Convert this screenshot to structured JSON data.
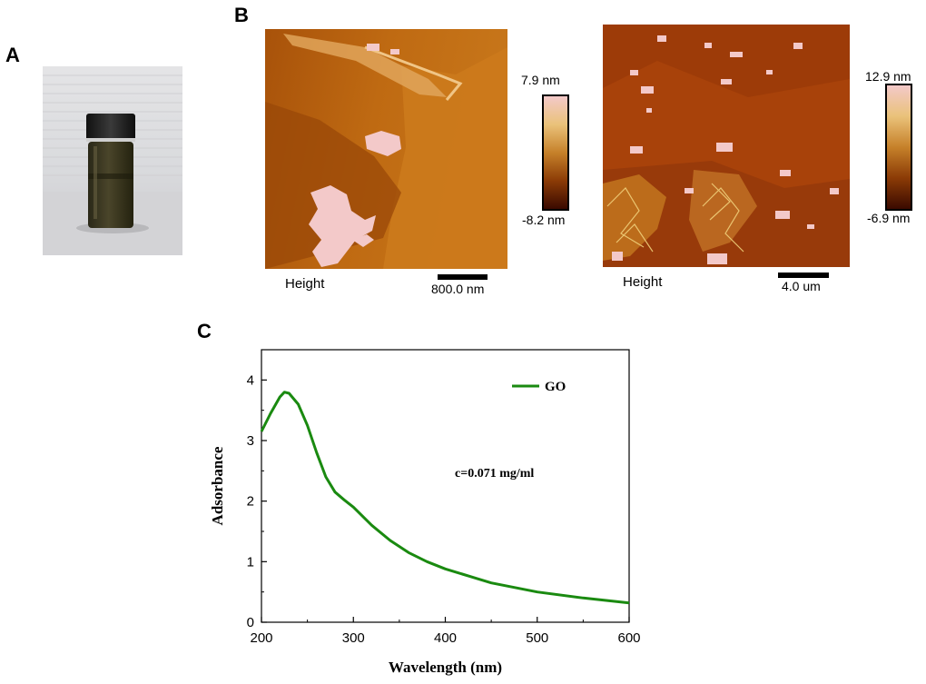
{
  "panels": {
    "a": {
      "letter": "A"
    },
    "b": {
      "letter": "B",
      "images": [
        {
          "label": "Height",
          "scale_bar": "800.0 nm",
          "cbar_max": "7.9 nm",
          "cbar_min": "-8.2 nm"
        },
        {
          "label": "Height",
          "scale_bar": "4.0 um",
          "cbar_max": "12.9 nm",
          "cbar_min": "-6.9 nm"
        }
      ]
    },
    "c": {
      "letter": "C"
    }
  },
  "colors": {
    "afm_dark": "#5a1a00",
    "afm_mid": "#b35a0a",
    "afm_light": "#f2b96a",
    "afm_pink": "#f3c9c9",
    "line_green": "#1a8a10"
  },
  "chart_data": {
    "type": "line",
    "title": "",
    "xlabel": "Wavelength (nm)",
    "ylabel": "Adsorbance",
    "xlim": [
      200,
      600
    ],
    "ylim": [
      0,
      4.5
    ],
    "xticks": [
      "200",
      "300",
      "400",
      "500",
      "600"
    ],
    "yticks": [
      "0",
      "1",
      "2",
      "3",
      "4"
    ],
    "annotation": "c=0.071 mg/ml",
    "legend": {
      "placement": "top-right",
      "entries": [
        "GO"
      ]
    },
    "grid": false,
    "series": [
      {
        "name": "GO",
        "color": "#1a8a10",
        "x": [
          200,
          210,
          220,
          225,
          230,
          240,
          250,
          260,
          270,
          280,
          290,
          300,
          320,
          340,
          360,
          380,
          400,
          450,
          500,
          550,
          600
        ],
        "y": [
          3.15,
          3.45,
          3.72,
          3.8,
          3.78,
          3.6,
          3.25,
          2.8,
          2.4,
          2.15,
          2.02,
          1.9,
          1.6,
          1.35,
          1.15,
          1.0,
          0.88,
          0.65,
          0.5,
          0.4,
          0.32
        ]
      }
    ]
  }
}
